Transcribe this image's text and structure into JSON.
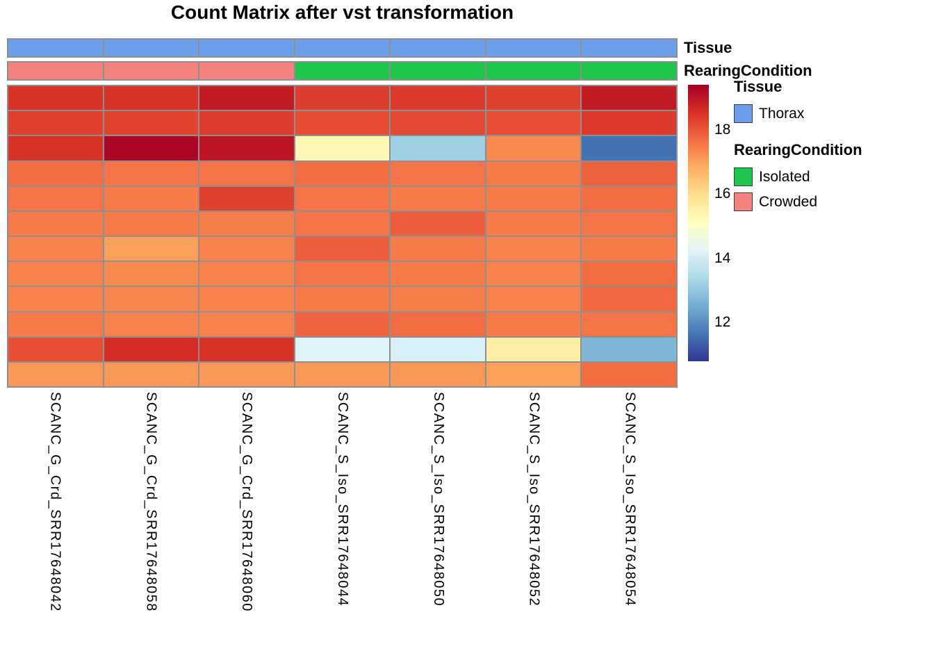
{
  "chart_data": {
    "type": "heatmap",
    "title": "Count Matrix after vst transformation",
    "columns": [
      "SCANC_G_Crd_SRR17648042",
      "SCANC_G_Crd_SRR17648058",
      "SCANC_G_Crd_SRR17648060",
      "SCANC_S_Iso_SRR17648044",
      "SCANC_S_Iso_SRR17648050",
      "SCANC_S_Iso_SRR17648052",
      "SCANC_S_Iso_SRR17648054"
    ],
    "row_labels_shown": false,
    "values": [
      [
        18.5,
        18.5,
        18.9,
        18.35,
        18.4,
        18.3,
        18.9
      ],
      [
        18.3,
        18.25,
        18.35,
        18.15,
        18.2,
        18.1,
        18.4
      ],
      [
        18.5,
        19.3,
        19.0,
        15.3,
        13.2,
        17.3,
        11.6
      ],
      [
        17.7,
        17.6,
        17.6,
        17.7,
        17.6,
        17.5,
        17.85
      ],
      [
        17.6,
        17.5,
        18.3,
        17.6,
        17.5,
        17.5,
        17.7
      ],
      [
        17.5,
        17.5,
        17.45,
        17.6,
        17.9,
        17.5,
        17.6
      ],
      [
        17.4,
        17.0,
        17.4,
        17.9,
        17.5,
        17.4,
        17.5
      ],
      [
        17.4,
        17.3,
        17.4,
        17.6,
        17.5,
        17.4,
        17.7
      ],
      [
        17.4,
        17.35,
        17.4,
        17.5,
        17.45,
        17.4,
        17.75
      ],
      [
        17.5,
        17.4,
        17.4,
        17.8,
        17.7,
        17.5,
        17.6
      ],
      [
        18.1,
        18.6,
        18.5,
        14.2,
        14.1,
        15.6,
        12.7
      ],
      [
        17.1,
        17.1,
        17.1,
        17.1,
        17.1,
        17.0,
        17.7
      ]
    ],
    "annotations": {
      "rows": [
        {
          "name": "Tissue",
          "values": [
            "Thorax",
            "Thorax",
            "Thorax",
            "Thorax",
            "Thorax",
            "Thorax",
            "Thorax"
          ],
          "colors": {
            "Thorax": "#6D9EEB"
          }
        },
        {
          "name": "RearingCondition",
          "values": [
            "Crowded",
            "Crowded",
            "Crowded",
            "Isolated",
            "Isolated",
            "Isolated",
            "Isolated"
          ],
          "colors": {
            "Isolated": "#1EC64C",
            "Crowded": "#F4827E"
          }
        }
      ]
    },
    "colorbar": {
      "ticks": [
        18,
        16,
        14,
        12
      ],
      "vmin": 10.8,
      "vmax": 19.4,
      "palette": [
        "#313695",
        "#4575B4",
        "#74ADD1",
        "#ABD9E9",
        "#E0F3F8",
        "#FFFFBF",
        "#FEE090",
        "#FDAE61",
        "#F46D43",
        "#D73027",
        "#A50026"
      ]
    },
    "grid_color": "#8F8F8F"
  },
  "legend": {
    "tissue": {
      "title": "Tissue",
      "items": [
        {
          "label": "Thorax",
          "color": "#6D9EEB"
        }
      ]
    },
    "rearing": {
      "title": "RearingCondition",
      "items": [
        {
          "label": "Isolated",
          "color": "#1EC64C"
        },
        {
          "label": "Crowded",
          "color": "#F4827E"
        }
      ]
    }
  }
}
